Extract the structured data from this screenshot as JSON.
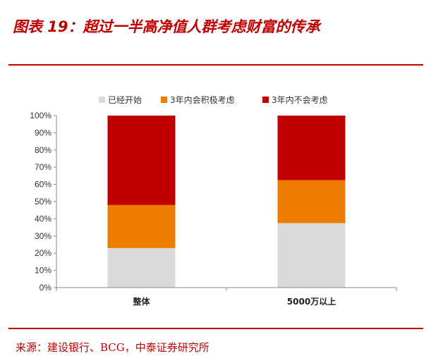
{
  "header": {
    "title": "图表 19：超过一半高净值人群考虑财富的传承"
  },
  "footer": {
    "source": "来源：建设银行、BCG，中泰证券研究所"
  },
  "colors": {
    "accent": "#c00000",
    "series": [
      "#d9d9d9",
      "#ed7d00",
      "#c00000"
    ]
  },
  "chart_data": {
    "type": "bar",
    "stacked": true,
    "categories": [
      "整体",
      "5000万以上"
    ],
    "series": [
      {
        "name": "已经开始",
        "values": [
          23,
          37.5
        ]
      },
      {
        "name": "3年内会积极考虑",
        "values": [
          25,
          25
        ]
      },
      {
        "name": "3年内不会考虑",
        "values": [
          52,
          37.5
        ]
      }
    ],
    "yticks": [
      "0%",
      "10%",
      "20%",
      "30%",
      "40%",
      "50%",
      "60%",
      "70%",
      "80%",
      "90%",
      "100%"
    ],
    "ylim": [
      0,
      100
    ],
    "legend_position": "top",
    "grid": false
  }
}
